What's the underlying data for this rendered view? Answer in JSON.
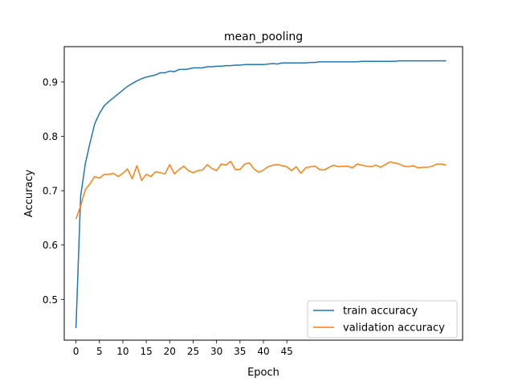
{
  "chart_data": {
    "type": "line",
    "title": "mean_pooling",
    "xlabel": "Epoch",
    "ylabel": "Accuracy",
    "xlim": [
      -2.5,
      82.5
    ],
    "ylim": [
      0.425,
      0.965
    ],
    "xticks": [
      0,
      5,
      10,
      15,
      20,
      25,
      30,
      35,
      40,
      45
    ],
    "yticks": [
      0.5,
      0.6,
      0.7,
      0.8,
      0.9
    ],
    "grid": false,
    "legend_position": "lower-right",
    "x": [
      0,
      1,
      2,
      3,
      4,
      5,
      6,
      7,
      8,
      9,
      10,
      11,
      12,
      13,
      14,
      15,
      16,
      17,
      18,
      19,
      20,
      21,
      22,
      23,
      24,
      25,
      26,
      27,
      28,
      29,
      30,
      31,
      32,
      33,
      34,
      35,
      36,
      37,
      38,
      39,
      40,
      41,
      42,
      43,
      44,
      45,
      46,
      47,
      48,
      49,
      50,
      51,
      52,
      53,
      54,
      55,
      56,
      57,
      58,
      59,
      60,
      61,
      62,
      63,
      64,
      65,
      66,
      67,
      68,
      69,
      70,
      71,
      72,
      73,
      74,
      75,
      76,
      77,
      78,
      79
    ],
    "series": [
      {
        "name": "train accuracy",
        "color": "#1f77b4",
        "values": [
          0.447,
          0.69,
          0.75,
          0.788,
          0.823,
          0.842,
          0.856,
          0.864,
          0.871,
          0.878,
          0.885,
          0.892,
          0.897,
          0.902,
          0.906,
          0.909,
          0.911,
          0.913,
          0.917,
          0.917,
          0.92,
          0.919,
          0.923,
          0.923,
          0.924,
          0.926,
          0.926,
          0.926,
          0.928,
          0.928,
          0.929,
          0.929,
          0.93,
          0.93,
          0.931,
          0.931,
          0.932,
          0.932,
          0.932,
          0.932,
          0.932,
          0.933,
          0.934,
          0.933,
          0.935,
          0.935,
          0.935,
          0.935,
          0.935,
          0.935,
          0.936,
          0.936,
          0.937,
          0.937,
          0.937,
          0.937,
          0.937,
          0.937,
          0.937,
          0.937,
          0.937,
          0.938,
          0.938,
          0.938,
          0.938,
          0.938,
          0.938,
          0.938,
          0.938,
          0.939,
          0.939,
          0.939,
          0.939,
          0.939,
          0.939,
          0.939,
          0.939,
          0.939,
          0.939,
          0.939
        ]
      },
      {
        "name": "validation accuracy",
        "color": "#ff7f0e",
        "values": [
          0.648,
          0.672,
          0.702,
          0.713,
          0.726,
          0.723,
          0.73,
          0.73,
          0.732,
          0.726,
          0.732,
          0.74,
          0.722,
          0.746,
          0.719,
          0.73,
          0.726,
          0.735,
          0.733,
          0.731,
          0.748,
          0.731,
          0.739,
          0.745,
          0.737,
          0.733,
          0.737,
          0.738,
          0.748,
          0.741,
          0.737,
          0.749,
          0.747,
          0.754,
          0.739,
          0.739,
          0.749,
          0.751,
          0.74,
          0.734,
          0.738,
          0.744,
          0.747,
          0.748,
          0.746,
          0.744,
          0.737,
          0.744,
          0.732,
          0.742,
          0.744,
          0.745,
          0.739,
          0.738,
          0.743,
          0.747,
          0.744,
          0.745,
          0.745,
          0.742,
          0.749,
          0.747,
          0.745,
          0.744,
          0.747,
          0.743,
          0.748,
          0.753,
          0.751,
          0.749,
          0.745,
          0.744,
          0.746,
          0.742,
          0.743,
          0.743,
          0.745,
          0.749,
          0.749,
          0.747
        ]
      }
    ]
  }
}
